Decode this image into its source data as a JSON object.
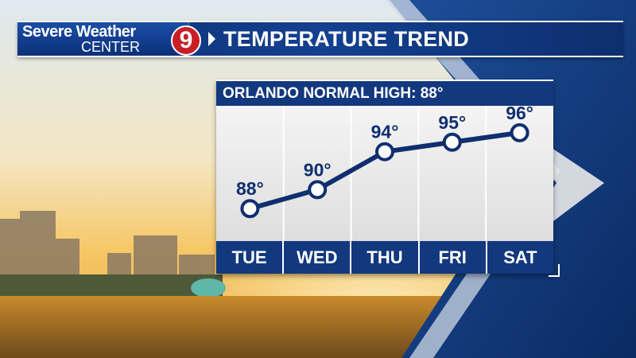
{
  "header": {
    "logo_line1": "Severe Weather",
    "logo_line2": "CENTER",
    "logo_channel": "9",
    "title": "TEMPERATURE TREND"
  },
  "chart_data": {
    "type": "line",
    "title": "TEMPERATURE TREND",
    "subtitle": "ORLANDO NORMAL HIGH: 88°",
    "categories": [
      "TUE",
      "WED",
      "THU",
      "FRI",
      "SAT"
    ],
    "series": [
      {
        "values": [
          88,
          90,
          94,
          95,
          96
        ],
        "labels": [
          "88°",
          "90°",
          "94°",
          "95°",
          "96°"
        ]
      }
    ],
    "ylim": [
      85,
      98
    ],
    "grid": true,
    "legend": "none",
    "colors": {
      "line": "#0f2f6f",
      "marker_fill": "#ffffff",
      "bar": "#12387e"
    }
  }
}
